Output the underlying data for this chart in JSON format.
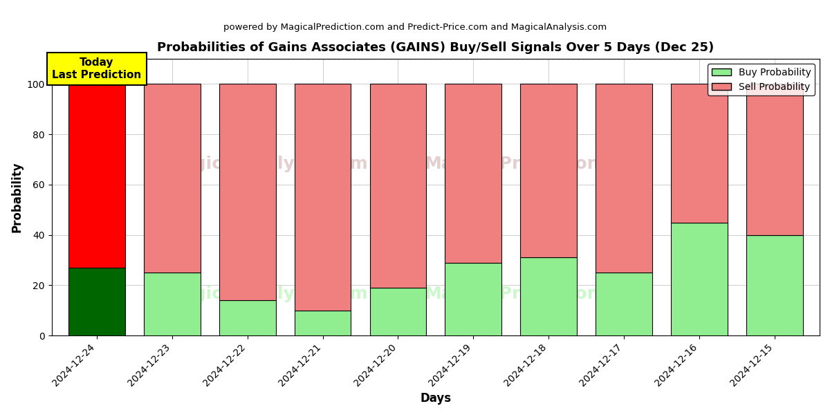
{
  "title": "Probabilities of Gains Associates (GAINS) Buy/Sell Signals Over 5 Days (Dec 25)",
  "subtitle": "powered by MagicalPrediction.com and Predict-Price.com and MagicalAnalysis.com",
  "xlabel": "Days",
  "ylabel": "Probability",
  "categories": [
    "2024-12-24",
    "2024-12-23",
    "2024-12-22",
    "2024-12-21",
    "2024-12-20",
    "2024-12-19",
    "2024-12-18",
    "2024-12-17",
    "2024-12-16",
    "2024-12-15"
  ],
  "buy_values": [
    27,
    25,
    14,
    10,
    19,
    29,
    31,
    25,
    45,
    40
  ],
  "sell_values": [
    73,
    75,
    86,
    90,
    81,
    71,
    69,
    75,
    55,
    60
  ],
  "today_bar_buy_color": "#006600",
  "today_bar_sell_color": "#ff0000",
  "buy_color": "#90ee90",
  "sell_color": "#f08080",
  "today_label_bg": "#ffff00",
  "today_label_text": "Today\nLast Prediction",
  "legend_buy_label": "Buy Probability",
  "legend_sell_label": "Sell Probability",
  "ylim": [
    0,
    110
  ],
  "dashed_line_y": 110,
  "figsize": [
    12,
    6
  ],
  "dpi": 100,
  "background_color": "#ffffff",
  "grid_color": "#bbbbbb",
  "bar_edge_color": "#000000",
  "bar_width": 0.75
}
